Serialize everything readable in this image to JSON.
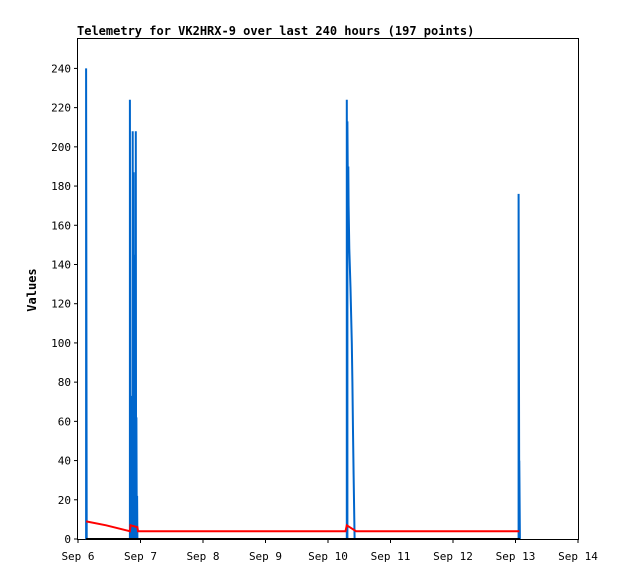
{
  "chart_data": {
    "type": "line",
    "title": "Telemetry for VK2HRX-9 over last 240 hours (197 points)",
    "xlabel": "",
    "ylabel": "Values",
    "x_unit": "days",
    "xlim": [
      6,
      14
    ],
    "ylim": [
      0,
      255
    ],
    "x_ticks": [
      {
        "value": 6,
        "label": "Sep 6"
      },
      {
        "value": 7,
        "label": "Sep 7"
      },
      {
        "value": 8,
        "label": "Sep 8"
      },
      {
        "value": 9,
        "label": "Sep 9"
      },
      {
        "value": 10,
        "label": "Sep 10"
      },
      {
        "value": 11,
        "label": "Sep 11"
      },
      {
        "value": 12,
        "label": "Sep 12"
      },
      {
        "value": 13,
        "label": "Sep 13"
      },
      {
        "value": 14,
        "label": "Sep 14"
      }
    ],
    "y_ticks": [
      0,
      20,
      40,
      60,
      80,
      100,
      120,
      140,
      160,
      180,
      200,
      220,
      240
    ],
    "grid": false,
    "legend": "none",
    "series": [
      {
        "color": "#0066cc",
        "points": [
          [
            6.13,
            0
          ],
          [
            6.13,
            240
          ],
          [
            6.14,
            0
          ],
          [
            6.83,
            0
          ],
          [
            6.83,
            224
          ],
          [
            6.84,
            0
          ],
          [
            6.845,
            0
          ],
          [
            6.845,
            73
          ],
          [
            6.85,
            0
          ],
          [
            6.86,
            0
          ],
          [
            6.86,
            65
          ],
          [
            6.865,
            0
          ],
          [
            6.875,
            0
          ],
          [
            6.875,
            208
          ],
          [
            6.88,
            0
          ],
          [
            6.89,
            0
          ],
          [
            6.89,
            187
          ],
          [
            6.895,
            0
          ],
          [
            6.9,
            0
          ],
          [
            6.9,
            145
          ],
          [
            6.905,
            0
          ],
          [
            6.915,
            0
          ],
          [
            6.915,
            104
          ],
          [
            6.92,
            0
          ],
          [
            6.925,
            0
          ],
          [
            6.925,
            208
          ],
          [
            6.93,
            0
          ],
          [
            6.935,
            0
          ],
          [
            6.935,
            62
          ],
          [
            6.94,
            0
          ],
          [
            6.945,
            0
          ],
          [
            6.945,
            22
          ],
          [
            6.95,
            0
          ],
          [
            10.3,
            0
          ],
          [
            10.3,
            224
          ],
          [
            10.31,
            0
          ],
          [
            10.31,
            213
          ],
          [
            10.32,
            168
          ],
          [
            10.325,
            190
          ],
          [
            10.33,
            170
          ],
          [
            10.34,
            148
          ],
          [
            10.36,
            128
          ],
          [
            10.38,
            100
          ],
          [
            10.39,
            80
          ],
          [
            10.4,
            55
          ],
          [
            10.41,
            33
          ],
          [
            10.42,
            10
          ],
          [
            10.425,
            0
          ],
          [
            13.05,
            0
          ],
          [
            13.05,
            176
          ],
          [
            13.06,
            0
          ],
          [
            13.06,
            40
          ],
          [
            13.07,
            0
          ]
        ]
      },
      {
        "color": "#ff0000",
        "points": [
          [
            6.13,
            9
          ],
          [
            6.45,
            7
          ],
          [
            6.83,
            4
          ],
          [
            6.84,
            7
          ],
          [
            6.95,
            6
          ],
          [
            6.96,
            4
          ],
          [
            10.28,
            4
          ],
          [
            10.3,
            7
          ],
          [
            10.45,
            4
          ],
          [
            13.05,
            4
          ],
          [
            13.06,
            4
          ]
        ]
      },
      {
        "color": "#000000",
        "points": [
          [
            6.13,
            0
          ],
          [
            13.07,
            0
          ]
        ]
      }
    ]
  }
}
